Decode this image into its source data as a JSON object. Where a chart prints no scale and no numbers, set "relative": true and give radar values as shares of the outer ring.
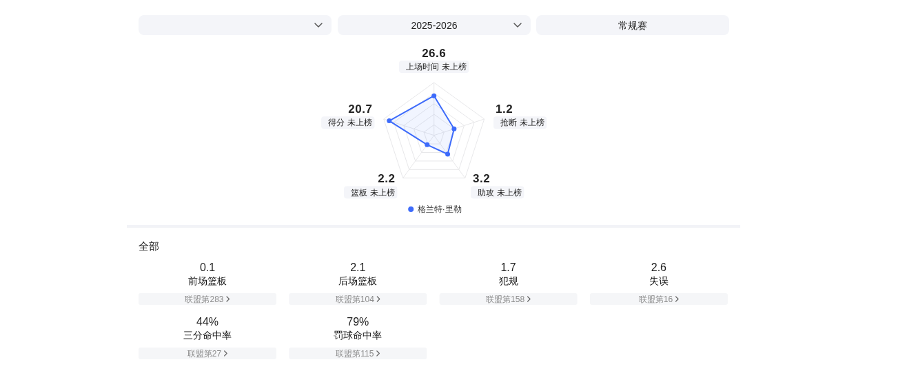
{
  "chart_data": [
    {
      "type": "radar",
      "annotations": [
        "2025-2026",
        "常规赛"
      ],
      "categories": [
        "26.6\n上场时间 未上榜",
        "1.2\n抢断 未上榜",
        "3.2\n助攻 未上榜",
        "2.2\n篮板 未上榜",
        "20.7\n得分 未上榜"
      ],
      "relative": true,
      "grid": true,
      "marker": "circle",
      "legend": "bottom",
      "series": [
        {
          "name": "格兰特·里勒",
          "color": "#3d6bfb",
          "values": [
            0.75,
            0.4,
            0.44,
            0.22,
            0.89
          ]
        }
      ]
    },
    {
      "type": "other",
      "title": "全部",
      "categories": [
        "前场篮板",
        "后场篮板",
        "犯规",
        "失误",
        "三分命中率",
        "罚球命中率"
      ],
      "value_labels": [
        "0.1",
        "2.1",
        "1.7",
        "2.6",
        "44%",
        "79%"
      ],
      "annotations": [
        "联盟第283",
        "联盟第104",
        "联盟第158",
        "联盟第16",
        "联盟第27",
        "联盟第115"
      ]
    }
  ]
}
